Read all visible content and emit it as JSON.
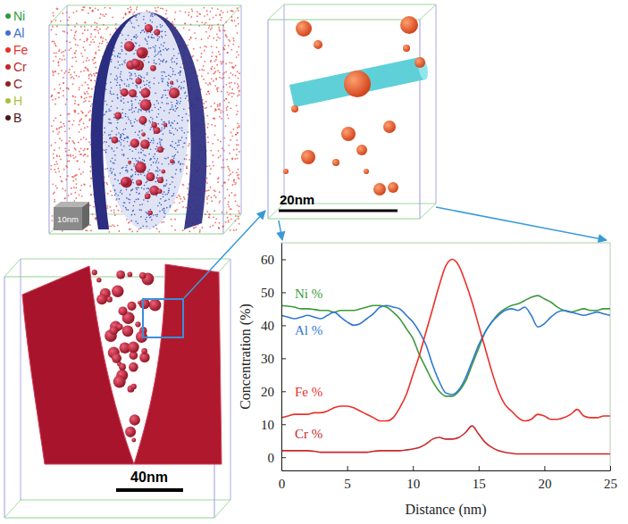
{
  "chart_data": {
    "type": "line",
    "x_label": "Distance (nm)",
    "y_label": "Concentration (%)",
    "x": [
      0,
      0.5,
      1,
      1.5,
      2,
      2.5,
      3,
      3.5,
      4,
      4.5,
      5,
      5.5,
      6,
      6.5,
      7,
      7.5,
      8,
      8.5,
      9,
      9.5,
      10,
      10.5,
      11,
      11.5,
      12,
      12.5,
      13,
      13.5,
      14,
      14.5,
      15,
      15.5,
      16,
      16.5,
      17,
      17.5,
      18,
      18.5,
      19,
      19.5,
      20,
      20.5,
      21,
      21.5,
      22,
      22.5,
      23,
      23.5,
      24,
      24.5,
      25
    ],
    "series": [
      {
        "name": "Ni %",
        "color": "#3c9a3c",
        "values": [
          46,
          45.8,
          45.5,
          45,
          45,
          44.8,
          44.5,
          44.5,
          44,
          44.5,
          44.5,
          44.5,
          45,
          45.5,
          46,
          46,
          45.5,
          44,
          42,
          39,
          36,
          31,
          27,
          23,
          20,
          18.5,
          18.5,
          20,
          23,
          28,
          33,
          38,
          41,
          43.5,
          45,
          46,
          46.5,
          47.5,
          48.5,
          49,
          48,
          47,
          45.5,
          44.5,
          44,
          44.5,
          45,
          44.5,
          44.5,
          45,
          45
        ]
      },
      {
        "name": "Al %",
        "color": "#2f78d0",
        "values": [
          43,
          42.5,
          42,
          42.5,
          43,
          42.5,
          42,
          43,
          44,
          42.5,
          41,
          40,
          40.5,
          42,
          43.5,
          45.5,
          46,
          45.5,
          45,
          43,
          41,
          38,
          34,
          28,
          23,
          19.5,
          19,
          20.5,
          24,
          29,
          34,
          38,
          41,
          43,
          44.5,
          45,
          44.5,
          45.5,
          43,
          39.5,
          40.5,
          42.5,
          44,
          44.5,
          44,
          43.5,
          43,
          43.5,
          44,
          43.5,
          43
        ]
      },
      {
        "name": "Fe %",
        "color": "#e8302a",
        "values": [
          12,
          12.5,
          13,
          13,
          13,
          13.5,
          13.5,
          14,
          15,
          15.5,
          15.5,
          15,
          14,
          13,
          12,
          11,
          11,
          12,
          15,
          19,
          25,
          31,
          38,
          45,
          52,
          58,
          60,
          58,
          53,
          47,
          40,
          33,
          26,
          20,
          16,
          14,
          12,
          11,
          11.5,
          13,
          12.5,
          11.5,
          11.5,
          12,
          13,
          14.5,
          12.5,
          12,
          12,
          12.5,
          12.5
        ]
      },
      {
        "name": "Cr %",
        "color": "#c8282a",
        "values": [
          2,
          2,
          2,
          2,
          2,
          1.8,
          1.5,
          1.5,
          1.5,
          1.5,
          1.5,
          1.5,
          1.5,
          1.5,
          1.8,
          2,
          2,
          2,
          2,
          2.2,
          2.5,
          3,
          4,
          5.5,
          6,
          5.5,
          5.5,
          6,
          7.5,
          9.5,
          7,
          4.5,
          3,
          2,
          1.5,
          1.2,
          1,
          1,
          1,
          1,
          1,
          1,
          1,
          1,
          1,
          1,
          1,
          1,
          1,
          1,
          1
        ]
      }
    ],
    "xlim": [
      0,
      25
    ],
    "ylim": [
      -4,
      65
    ],
    "xticks": [
      0,
      5,
      10,
      15,
      20,
      25
    ],
    "yticks": [
      0,
      10,
      20,
      30,
      40,
      50,
      60
    ],
    "grid": false
  },
  "figure": {
    "atom_legend": [
      {
        "label": "Ni",
        "color": "#2e9a3e"
      },
      {
        "label": "Al",
        "color": "#3f6fd0"
      },
      {
        "label": "Fe",
        "color": "#e8302a"
      },
      {
        "label": "Cr",
        "color": "#c0282c"
      },
      {
        "label": "C",
        "color": "#8c2424"
      },
      {
        "label": "H",
        "color": "#a8c040"
      },
      {
        "label": "B",
        "color": "#4a1818"
      }
    ],
    "cube_label": "10nm",
    "zoom_scale_bar": "20nm",
    "overview_scale_bar": "40nm"
  }
}
